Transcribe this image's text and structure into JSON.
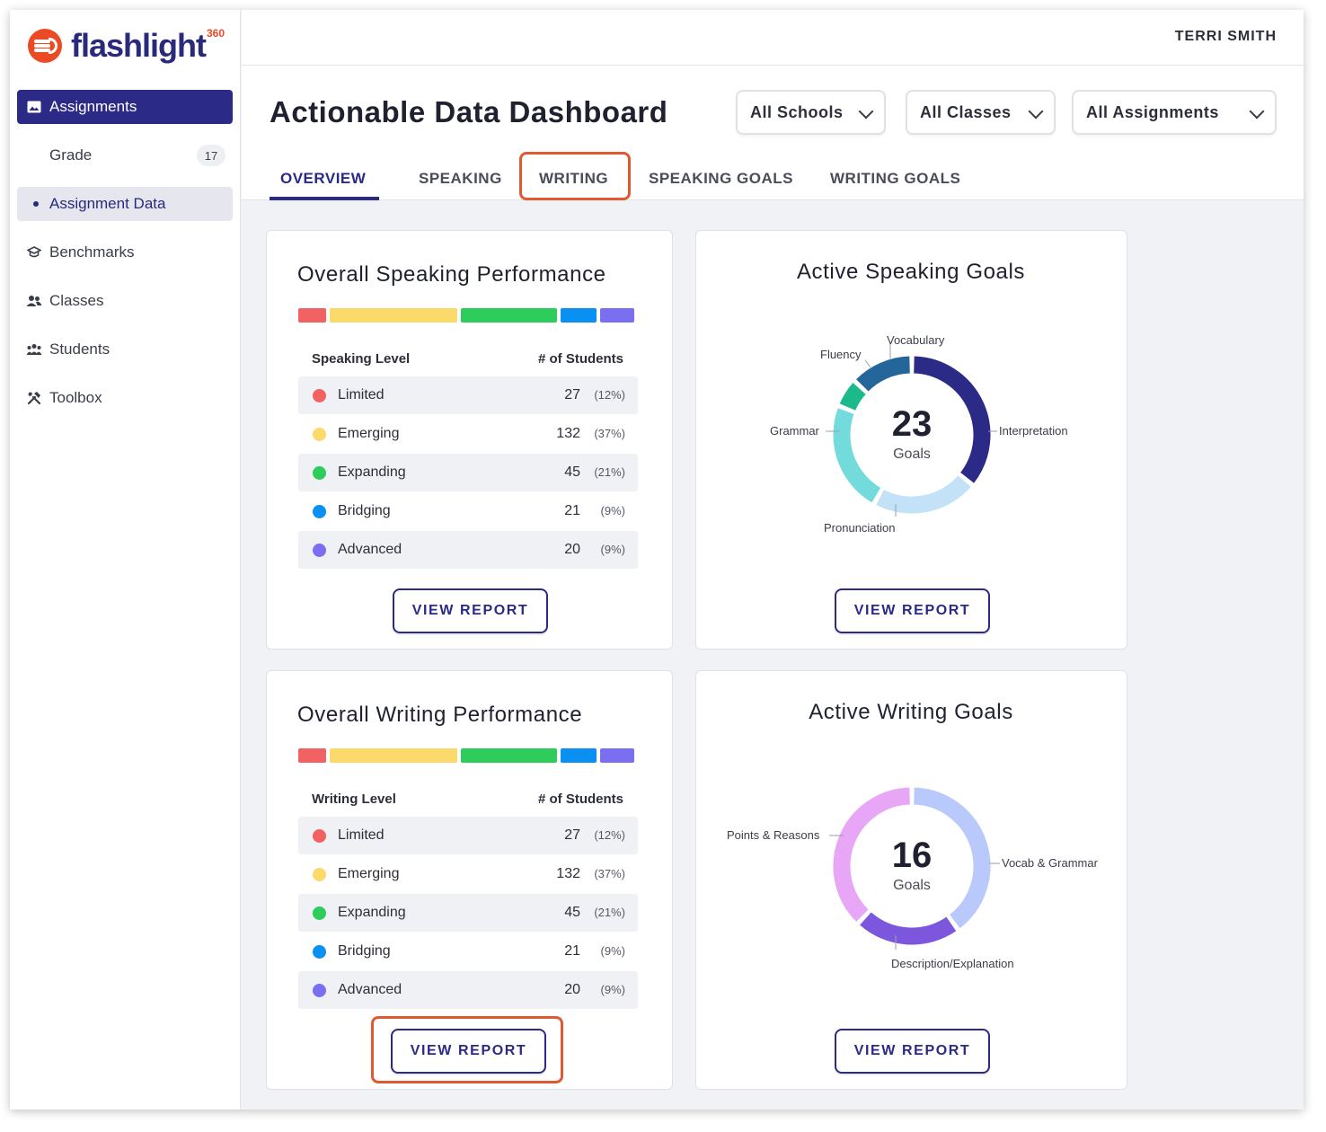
{
  "app": {
    "logo_text": "flashlight",
    "logo_sup": "360",
    "user_name": "TERRI SMITH"
  },
  "sidebar": {
    "items": [
      {
        "label": "Assignments",
        "icon": "image-icon"
      },
      {
        "label": "Grade",
        "badge": "17"
      },
      {
        "label": "Assignment Data"
      },
      {
        "label": "Benchmarks",
        "icon": "graduation-cap-icon"
      },
      {
        "label": "Classes",
        "icon": "users-icon"
      },
      {
        "label": "Students",
        "icon": "group-icon"
      },
      {
        "label": "Toolbox",
        "icon": "tools-icon"
      }
    ]
  },
  "header": {
    "title": "Actionable Data Dashboard",
    "filters": [
      {
        "value": "All Schools"
      },
      {
        "value": "All Classes"
      },
      {
        "value": "All Assignments"
      }
    ],
    "tabs": [
      {
        "label": "OVERVIEW"
      },
      {
        "label": "SPEAKING"
      },
      {
        "label": "WRITING"
      },
      {
        "label": "SPEAKING GOALS"
      },
      {
        "label": "WRITING GOALS"
      }
    ]
  },
  "colors": {
    "limited": "#f26262",
    "emerging": "#fbd96a",
    "expanding": "#2ecc5a",
    "bridging": "#0a8ff2",
    "advanced": "#7a6ff0",
    "accent": "#2b2a87",
    "highlight": "#e05a30"
  },
  "speaking_perf": {
    "title": "Overall Speaking Performance",
    "col_level": "Speaking Level",
    "col_students": "# of Students",
    "rows": [
      {
        "level": "Limited",
        "count": "27",
        "pct": "(12%)"
      },
      {
        "level": "Emerging",
        "count": "132",
        "pct": "(37%)"
      },
      {
        "level": "Expanding",
        "count": "45",
        "pct": "(21%)"
      },
      {
        "level": "Bridging",
        "count": "21",
        "pct": "(9%)"
      },
      {
        "level": "Advanced",
        "count": "20",
        "pct": "(9%)"
      }
    ],
    "button": "VIEW REPORT"
  },
  "writing_perf": {
    "title": "Overall Writing Performance",
    "col_level": "Writing Level",
    "col_students": "# of Students",
    "rows": [
      {
        "level": "Limited",
        "count": "27",
        "pct": "(12%)"
      },
      {
        "level": "Emerging",
        "count": "132",
        "pct": "(37%)"
      },
      {
        "level": "Expanding",
        "count": "45",
        "pct": "(21%)"
      },
      {
        "level": "Bridging",
        "count": "21",
        "pct": "(9%)"
      },
      {
        "level": "Advanced",
        "count": "20",
        "pct": "(9%)"
      }
    ],
    "button": "VIEW REPORT"
  },
  "speaking_goals": {
    "title": "Active Speaking Goals",
    "total": "23",
    "total_label": "Goals",
    "labels": [
      "Vocabulary",
      "Fluency",
      "Grammar",
      "Interpretation",
      "Pronunciation"
    ],
    "button": "VIEW REPORT"
  },
  "writing_goals": {
    "title": "Active Writing Goals",
    "total": "16",
    "total_label": "Goals",
    "labels": [
      "Points & Reasons",
      "Vocab & Grammar",
      "Description/Explanation"
    ],
    "button": "VIEW REPORT"
  },
  "chart_data": [
    {
      "type": "pie",
      "title": "Active Speaking Goals",
      "categories": [
        "Interpretation",
        "Pronunciation",
        "Grammar",
        "Fluency",
        "Vocabulary"
      ],
      "values": [
        36,
        22,
        23,
        6,
        13
      ],
      "colors": [
        "#2b2a87",
        "#c3e2f8",
        "#74dbdc",
        "#1cb98a",
        "#24669a"
      ]
    },
    {
      "type": "pie",
      "title": "Active Writing Goals",
      "categories": [
        "Vocab & Grammar",
        "Description/Explanation",
        "Points & Reasons"
      ],
      "values": [
        40,
        22,
        38
      ],
      "colors": [
        "#b9c9fb",
        "#7c57de",
        "#e7a6f6"
      ]
    }
  ]
}
